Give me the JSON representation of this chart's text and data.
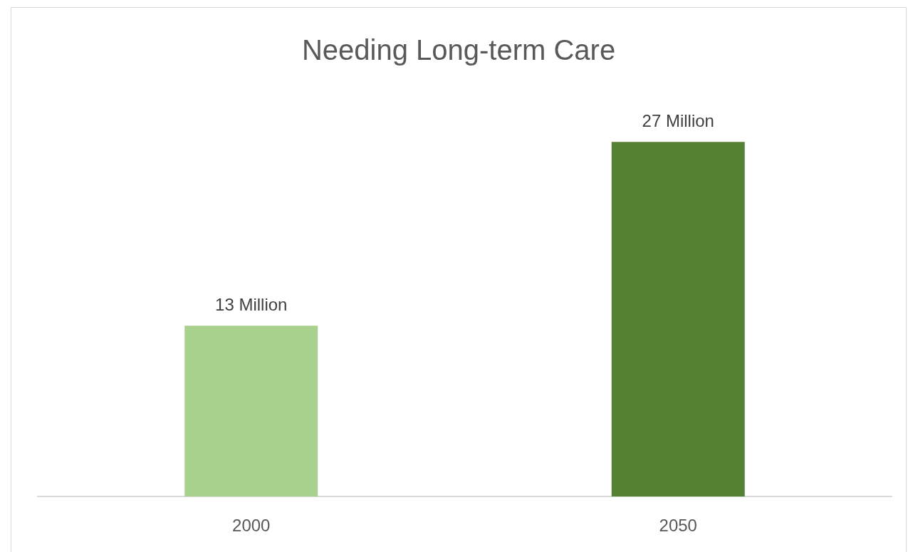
{
  "chart_data": {
    "type": "bar",
    "title": "Needing Long-term Care",
    "categories": [
      "2000",
      "2050"
    ],
    "values": [
      13,
      27
    ],
    "colors": [
      "#a9d18e",
      "#548235"
    ],
    "value_labels": [
      "13 Million",
      "27 Million"
    ],
    "grid": false
  }
}
